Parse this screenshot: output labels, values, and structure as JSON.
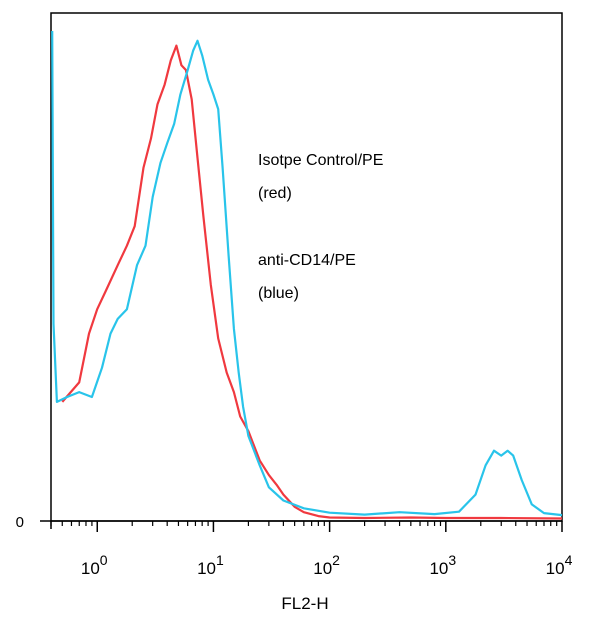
{
  "chart_data": {
    "type": "line",
    "title": "",
    "xlabel": "FL2-H",
    "ylabel": "",
    "xscale": "log",
    "xlim": [
      0.4,
      10000
    ],
    "ylim": [
      0,
      100
    ],
    "grid": false,
    "x_ticks": [
      {
        "value": 1,
        "base": "10",
        "exp": "0"
      },
      {
        "value": 10,
        "base": "10",
        "exp": "1"
      },
      {
        "value": 100,
        "base": "10",
        "exp": "2"
      },
      {
        "value": 1000,
        "base": "10",
        "exp": "3"
      },
      {
        "value": 10000,
        "base": "10",
        "exp": "4"
      }
    ],
    "y_tick_label": "0",
    "annotations": [
      {
        "text": "Isotpe Control/PE"
      },
      {
        "text": "(red)"
      },
      {
        "text": "anti-CD14/PE"
      },
      {
        "text": "(blue)"
      }
    ],
    "series": [
      {
        "color": "#f0393f",
        "points": [
          [
            0.5,
            24
          ],
          [
            0.7,
            28
          ],
          [
            0.85,
            38
          ],
          [
            1.0,
            43
          ],
          [
            1.2,
            47
          ],
          [
            1.5,
            52
          ],
          [
            1.8,
            56
          ],
          [
            2.1,
            60
          ],
          [
            2.5,
            72
          ],
          [
            2.9,
            78
          ],
          [
            3.3,
            85
          ],
          [
            3.8,
            89
          ],
          [
            4.3,
            94
          ],
          [
            4.8,
            97
          ],
          [
            5.3,
            93
          ],
          [
            5.8,
            92
          ],
          [
            6.5,
            86
          ],
          [
            7.3,
            74
          ],
          [
            8.2,
            62
          ],
          [
            9.5,
            48
          ],
          [
            11,
            37
          ],
          [
            13,
            30
          ],
          [
            15,
            26
          ],
          [
            17,
            21
          ],
          [
            20,
            18
          ],
          [
            25,
            12
          ],
          [
            30,
            9
          ],
          [
            35,
            7
          ],
          [
            40,
            5
          ],
          [
            50,
            2.5
          ],
          [
            60,
            1.4
          ],
          [
            80,
            0.6
          ],
          [
            100,
            0.3
          ],
          [
            200,
            0.2
          ],
          [
            500,
            0.3
          ],
          [
            1000,
            0.2
          ],
          [
            3000,
            0.2
          ],
          [
            10000,
            0.1
          ]
        ]
      },
      {
        "color": "#29c4ea",
        "points": [
          [
            0.41,
            100
          ],
          [
            0.42,
            40
          ],
          [
            0.45,
            24
          ],
          [
            0.55,
            25
          ],
          [
            0.7,
            26
          ],
          [
            0.9,
            25
          ],
          [
            1.1,
            31
          ],
          [
            1.3,
            38
          ],
          [
            1.5,
            41
          ],
          [
            1.8,
            43
          ],
          [
            2.2,
            52
          ],
          [
            2.6,
            56
          ],
          [
            3.0,
            66
          ],
          [
            3.5,
            73
          ],
          [
            4.0,
            77
          ],
          [
            4.6,
            81
          ],
          [
            5.2,
            87
          ],
          [
            6.0,
            92
          ],
          [
            6.7,
            96
          ],
          [
            7.3,
            98
          ],
          [
            8.0,
            95
          ],
          [
            9.0,
            90
          ],
          [
            10,
            87
          ],
          [
            11,
            84
          ],
          [
            12,
            72
          ],
          [
            13.5,
            54
          ],
          [
            15,
            39
          ],
          [
            16.5,
            30
          ],
          [
            18,
            23
          ],
          [
            20,
            17
          ],
          [
            25,
            11
          ],
          [
            30,
            6.5
          ],
          [
            40,
            3.8
          ],
          [
            60,
            2.2
          ],
          [
            100,
            1.3
          ],
          [
            200,
            0.9
          ],
          [
            400,
            1.4
          ],
          [
            800,
            1.0
          ],
          [
            1300,
            1.5
          ],
          [
            1800,
            5
          ],
          [
            2200,
            11
          ],
          [
            2600,
            14
          ],
          [
            3000,
            13
          ],
          [
            3400,
            14
          ],
          [
            3800,
            13
          ],
          [
            4500,
            8
          ],
          [
            5500,
            3
          ],
          [
            7000,
            1.2
          ],
          [
            10000,
            0.8
          ]
        ]
      }
    ]
  }
}
